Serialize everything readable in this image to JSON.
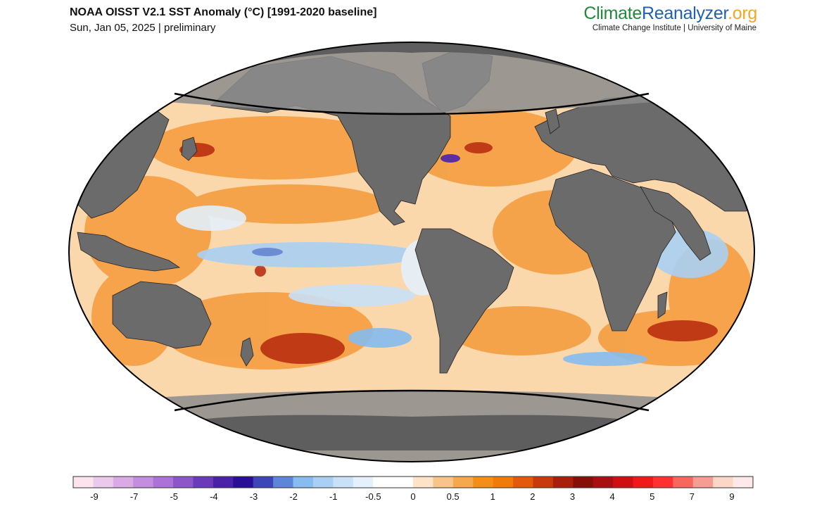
{
  "header": {
    "title": "NOAA OISST V2.1 SST Anomaly (°C) [1991-2020 baseline]",
    "subtitle": "Sun, Jan 05, 2025 | preliminary"
  },
  "brand": {
    "name_part1": "Climate",
    "name_part2": "Reanalyzer",
    "name_part3": ".org",
    "tagline": "Climate Change Institute | University of Maine"
  },
  "colors": {
    "land": "#6b6b6b",
    "polar_mask": "#8c8c8c",
    "border": "#000000",
    "brand_green": "#1f8a3a",
    "brand_blue": "#1f5fb4",
    "brand_orange": "#f5a623"
  },
  "map": {
    "projection": "Robinson",
    "variable": "SST Anomaly",
    "polar_mask": true
  },
  "colorbar": {
    "ticks": [
      "-9",
      "-7",
      "-5",
      "-4",
      "-3",
      "-2",
      "-1",
      "-0.5",
      "0",
      "0.5",
      "1",
      "2",
      "3",
      "4",
      "5",
      "7",
      "9"
    ],
    "swatches": [
      "#fce4ef",
      "#ebc9ec",
      "#d9aae6",
      "#c38ee0",
      "#ad72d8",
      "#8c55c8",
      "#6a3ab8",
      "#4a22a8",
      "#2a0e96",
      "#3c46b6",
      "#5e86d8",
      "#86bcf0",
      "#a9d0f4",
      "#c9e1f7",
      "#e4f0fb",
      "#ffffff",
      "#ffffff",
      "#fde3c8",
      "#f9c48a",
      "#f6a84e",
      "#f48f16",
      "#f07a0a",
      "#e35a0c",
      "#c83a0e",
      "#a8200a",
      "#861008",
      "#a90f10",
      "#cf0f12",
      "#f01818",
      "#ff3030",
      "#f7675e",
      "#f59d92",
      "#fcd6c6",
      "#fde9ea"
    ]
  }
}
